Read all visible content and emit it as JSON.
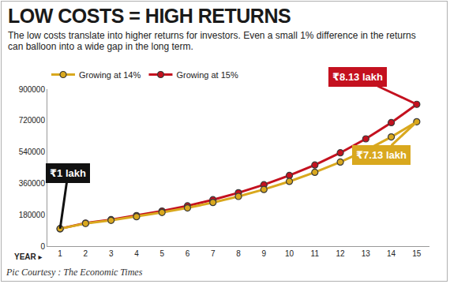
{
  "chart_data": {
    "type": "line",
    "title": "LOW COSTS = HIGH RETURNS",
    "subtitle": "The low costs translate into higher returns for investors. Even a small 1% difference in the returns can balloon into a wide gap in the long term.",
    "caption": "Pic Courtesy : The Economic Times",
    "xlabel": "YEAR ▸",
    "x": [
      1,
      2,
      3,
      4,
      5,
      6,
      7,
      8,
      9,
      10,
      11,
      12,
      13,
      14,
      15
    ],
    "series": [
      {
        "name": "Growing at 14%",
        "color": "#d9a81e",
        "marker": "circle",
        "line_style": "solid",
        "values": [
          100000,
          130000,
          148000,
          169000,
          193000,
          219000,
          250000,
          285000,
          325000,
          371000,
          423000,
          482000,
          549000,
          626000,
          713000
        ]
      },
      {
        "name": "Growing at 15%",
        "color": "#c4111f",
        "marker": "circle",
        "line_style": "solid",
        "values": [
          100000,
          132000,
          152000,
          175000,
          201000,
          231000,
          266000,
          306000,
          352000,
          405000,
          465000,
          535000,
          615000,
          708000,
          813000
        ]
      }
    ],
    "xlim": [
      0.5,
      15.5
    ],
    "xticks": [
      1,
      2,
      3,
      4,
      5,
      6,
      7,
      8,
      9,
      10,
      11,
      12,
      13,
      14,
      15
    ],
    "ylim": [
      0,
      900000
    ],
    "yticks": [
      0,
      180000,
      360000,
      540000,
      720000,
      900000
    ],
    "grid": false,
    "legend": "upper left",
    "annotations": [
      {
        "text": "₹1 lakh",
        "x": 1,
        "y": 100000,
        "color": "#111111"
      },
      {
        "text": "₹8.13 lakh",
        "x": 15,
        "y": 813000,
        "color": "#c4111f"
      },
      {
        "text": "₹7.13 lakh",
        "x": 15,
        "y": 713000,
        "color": "#d9a81e"
      }
    ]
  }
}
